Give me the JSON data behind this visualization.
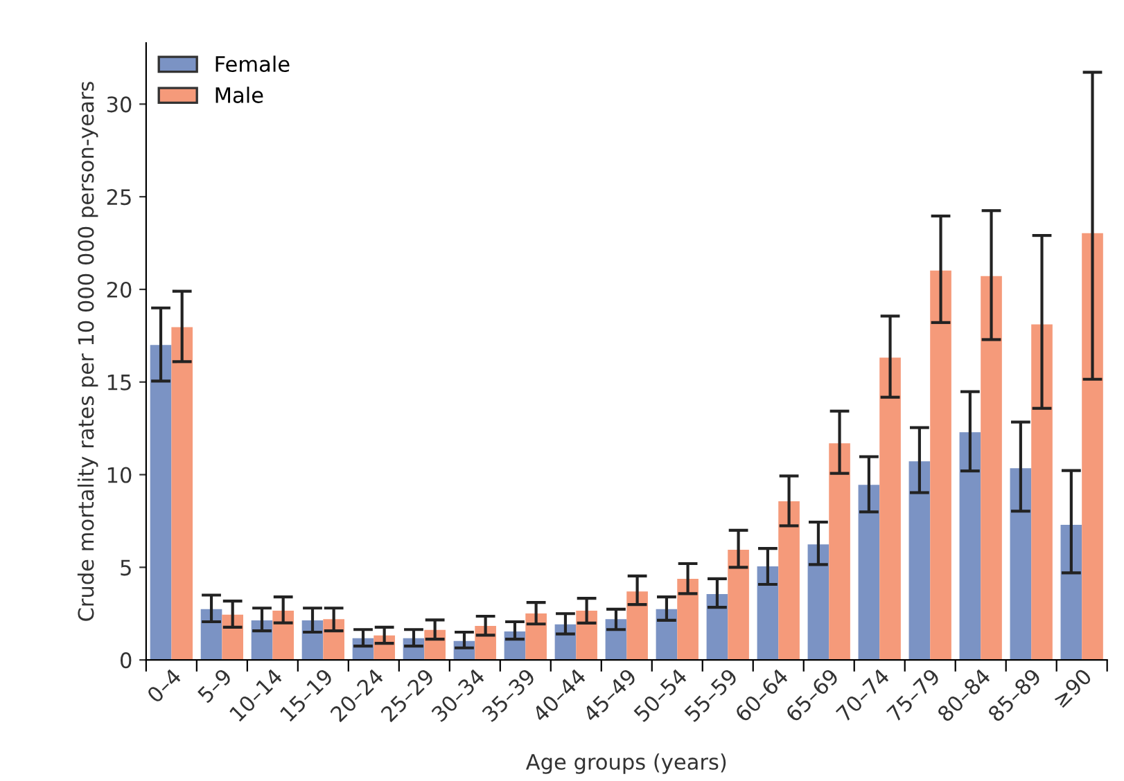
{
  "chart_data": {
    "type": "bar",
    "xlabel": "Age groups (years)",
    "ylabel": "Crude mortality rates per 10 000 000 person-years",
    "categories": [
      "0–4",
      "5–9",
      "10–14",
      "15–19",
      "20–24",
      "25–29",
      "30–34",
      "35–39",
      "40–44",
      "45–49",
      "50–54",
      "55–59",
      "60–64",
      "65–69",
      "70–74",
      "75–79",
      "80–84",
      "85–89",
      "≥90"
    ],
    "series": [
      {
        "name": "Female",
        "color": "#7b93c4",
        "values": [
          17.0,
          2.74,
          2.14,
          2.14,
          1.17,
          1.17,
          1.02,
          1.54,
          1.92,
          2.2,
          2.74,
          3.56,
          5.05,
          6.24,
          9.45,
          10.72,
          12.29,
          10.35,
          7.29
        ],
        "errors": [
          [
            15.05,
            19.0
          ],
          [
            2.06,
            3.5
          ],
          [
            1.57,
            2.8
          ],
          [
            1.5,
            2.8
          ],
          [
            0.75,
            1.64
          ],
          [
            0.75,
            1.64
          ],
          [
            0.65,
            1.5
          ],
          [
            1.12,
            2.06
          ],
          [
            1.4,
            2.5
          ],
          [
            1.64,
            2.74
          ],
          [
            2.14,
            3.4
          ],
          [
            2.84,
            4.38
          ],
          [
            4.08,
            6.02
          ],
          [
            5.15,
            7.44
          ],
          [
            7.99,
            10.97
          ],
          [
            9.03,
            12.54
          ],
          [
            10.2,
            14.48
          ],
          [
            8.03,
            12.84
          ],
          [
            4.7,
            10.22
          ]
        ]
      },
      {
        "name": "Male",
        "color": "#f59a7a",
        "values": [
          17.96,
          2.44,
          2.66,
          2.2,
          1.32,
          1.62,
          1.84,
          2.51,
          2.66,
          3.7,
          4.38,
          5.95,
          8.56,
          11.69,
          16.32,
          21.02,
          20.72,
          18.11,
          23.03
        ],
        "errors": [
          [
            16.1,
            19.9
          ],
          [
            1.77,
            3.18
          ],
          [
            2.0,
            3.4
          ],
          [
            1.57,
            2.8
          ],
          [
            0.9,
            1.77
          ],
          [
            1.12,
            2.16
          ],
          [
            1.34,
            2.36
          ],
          [
            1.94,
            3.1
          ],
          [
            1.99,
            3.33
          ],
          [
            2.99,
            4.53
          ],
          [
            3.58,
            5.2
          ],
          [
            5.0,
            7.0
          ],
          [
            7.24,
            9.93
          ],
          [
            10.07,
            13.43
          ],
          [
            14.18,
            18.56
          ],
          [
            18.21,
            23.96
          ],
          [
            17.29,
            24.25
          ],
          [
            13.58,
            22.91
          ],
          [
            15.15,
            31.72
          ]
        ]
      }
    ],
    "ylim": [
      0,
      33.3
    ],
    "yticks": [
      0,
      5,
      10,
      15,
      20,
      25,
      30
    ],
    "grid": false,
    "legend": "top left"
  }
}
